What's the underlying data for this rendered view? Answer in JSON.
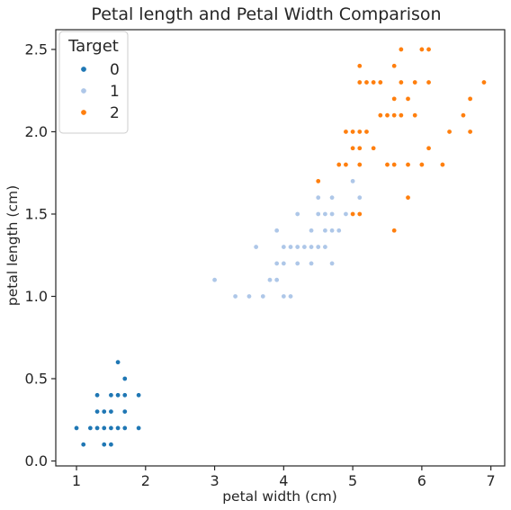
{
  "chart_data": {
    "type": "scatter",
    "title": "Petal length and Petal Width Comparison",
    "xlabel": "petal width (cm)",
    "ylabel": "petal length (cm)",
    "xlim": [
      0.7,
      7.2
    ],
    "ylim": [
      -0.03,
      2.62
    ],
    "x_ticks": [
      1,
      2,
      3,
      4,
      5,
      6,
      7
    ],
    "x_tick_labels": [
      "1",
      "2",
      "3",
      "4",
      "5",
      "6",
      "7"
    ],
    "y_ticks": [
      0.0,
      0.5,
      1.0,
      1.5,
      2.0,
      2.5
    ],
    "y_tick_labels": [
      "0.0",
      "0.5",
      "1.0",
      "1.5",
      "2.0",
      "2.5"
    ],
    "grid": false,
    "legend": {
      "title": "Target",
      "position": "top-left"
    },
    "series": [
      {
        "name": "0",
        "color": "#1f77b4",
        "points": [
          [
            1.0,
            0.2
          ],
          [
            1.1,
            0.1
          ],
          [
            1.2,
            0.2
          ],
          [
            1.3,
            0.2
          ],
          [
            1.3,
            0.3
          ],
          [
            1.3,
            0.4
          ],
          [
            1.4,
            0.2
          ],
          [
            1.4,
            0.3
          ],
          [
            1.4,
            0.1
          ],
          [
            1.5,
            0.2
          ],
          [
            1.5,
            0.3
          ],
          [
            1.5,
            0.4
          ],
          [
            1.5,
            0.1
          ],
          [
            1.6,
            0.2
          ],
          [
            1.6,
            0.4
          ],
          [
            1.6,
            0.6
          ],
          [
            1.7,
            0.2
          ],
          [
            1.7,
            0.3
          ],
          [
            1.7,
            0.4
          ],
          [
            1.7,
            0.5
          ],
          [
            1.9,
            0.2
          ],
          [
            1.9,
            0.4
          ]
        ]
      },
      {
        "name": "1",
        "color": "#aec7e8",
        "points": [
          [
            3.0,
            1.1
          ],
          [
            3.3,
            1.0
          ],
          [
            3.5,
            1.0
          ],
          [
            3.6,
            1.3
          ],
          [
            3.7,
            1.0
          ],
          [
            3.8,
            1.1
          ],
          [
            3.9,
            1.1
          ],
          [
            3.9,
            1.2
          ],
          [
            3.9,
            1.4
          ],
          [
            4.0,
            1.0
          ],
          [
            4.0,
            1.2
          ],
          [
            4.0,
            1.3
          ],
          [
            4.1,
            1.0
          ],
          [
            4.1,
            1.3
          ],
          [
            4.2,
            1.2
          ],
          [
            4.2,
            1.3
          ],
          [
            4.2,
            1.5
          ],
          [
            4.3,
            1.3
          ],
          [
            4.4,
            1.2
          ],
          [
            4.4,
            1.3
          ],
          [
            4.4,
            1.4
          ],
          [
            4.5,
            1.3
          ],
          [
            4.5,
            1.5
          ],
          [
            4.5,
            1.6
          ],
          [
            4.6,
            1.3
          ],
          [
            4.6,
            1.4
          ],
          [
            4.6,
            1.5
          ],
          [
            4.7,
            1.2
          ],
          [
            4.7,
            1.4
          ],
          [
            4.7,
            1.5
          ],
          [
            4.7,
            1.6
          ],
          [
            4.8,
            1.4
          ],
          [
            4.8,
            1.8
          ],
          [
            4.9,
            1.5
          ],
          [
            5.0,
            1.7
          ],
          [
            5.1,
            1.6
          ]
        ]
      },
      {
        "name": "2",
        "color": "#ff7f0e",
        "points": [
          [
            4.5,
            1.7
          ],
          [
            4.8,
            1.8
          ],
          [
            4.9,
            1.8
          ],
          [
            4.9,
            2.0
          ],
          [
            5.0,
            1.5
          ],
          [
            5.0,
            1.9
          ],
          [
            5.0,
            2.0
          ],
          [
            5.1,
            1.5
          ],
          [
            5.1,
            1.8
          ],
          [
            5.1,
            1.9
          ],
          [
            5.1,
            2.0
          ],
          [
            5.1,
            2.3
          ],
          [
            5.1,
            2.4
          ],
          [
            5.2,
            2.0
          ],
          [
            5.2,
            2.3
          ],
          [
            5.3,
            1.9
          ],
          [
            5.3,
            2.3
          ],
          [
            5.4,
            2.1
          ],
          [
            5.4,
            2.3
          ],
          [
            5.5,
            1.8
          ],
          [
            5.5,
            2.1
          ],
          [
            5.6,
            1.4
          ],
          [
            5.6,
            1.8
          ],
          [
            5.6,
            2.1
          ],
          [
            5.6,
            2.2
          ],
          [
            5.6,
            2.4
          ],
          [
            5.7,
            2.1
          ],
          [
            5.7,
            2.3
          ],
          [
            5.7,
            2.5
          ],
          [
            5.8,
            1.6
          ],
          [
            5.8,
            1.8
          ],
          [
            5.8,
            2.2
          ],
          [
            5.9,
            2.1
          ],
          [
            5.9,
            2.3
          ],
          [
            6.0,
            1.8
          ],
          [
            6.0,
            2.5
          ],
          [
            6.1,
            1.9
          ],
          [
            6.1,
            2.3
          ],
          [
            6.1,
            2.5
          ],
          [
            6.3,
            1.8
          ],
          [
            6.4,
            2.0
          ],
          [
            6.6,
            2.1
          ],
          [
            6.7,
            2.0
          ],
          [
            6.7,
            2.2
          ],
          [
            6.9,
            2.3
          ]
        ]
      }
    ]
  }
}
